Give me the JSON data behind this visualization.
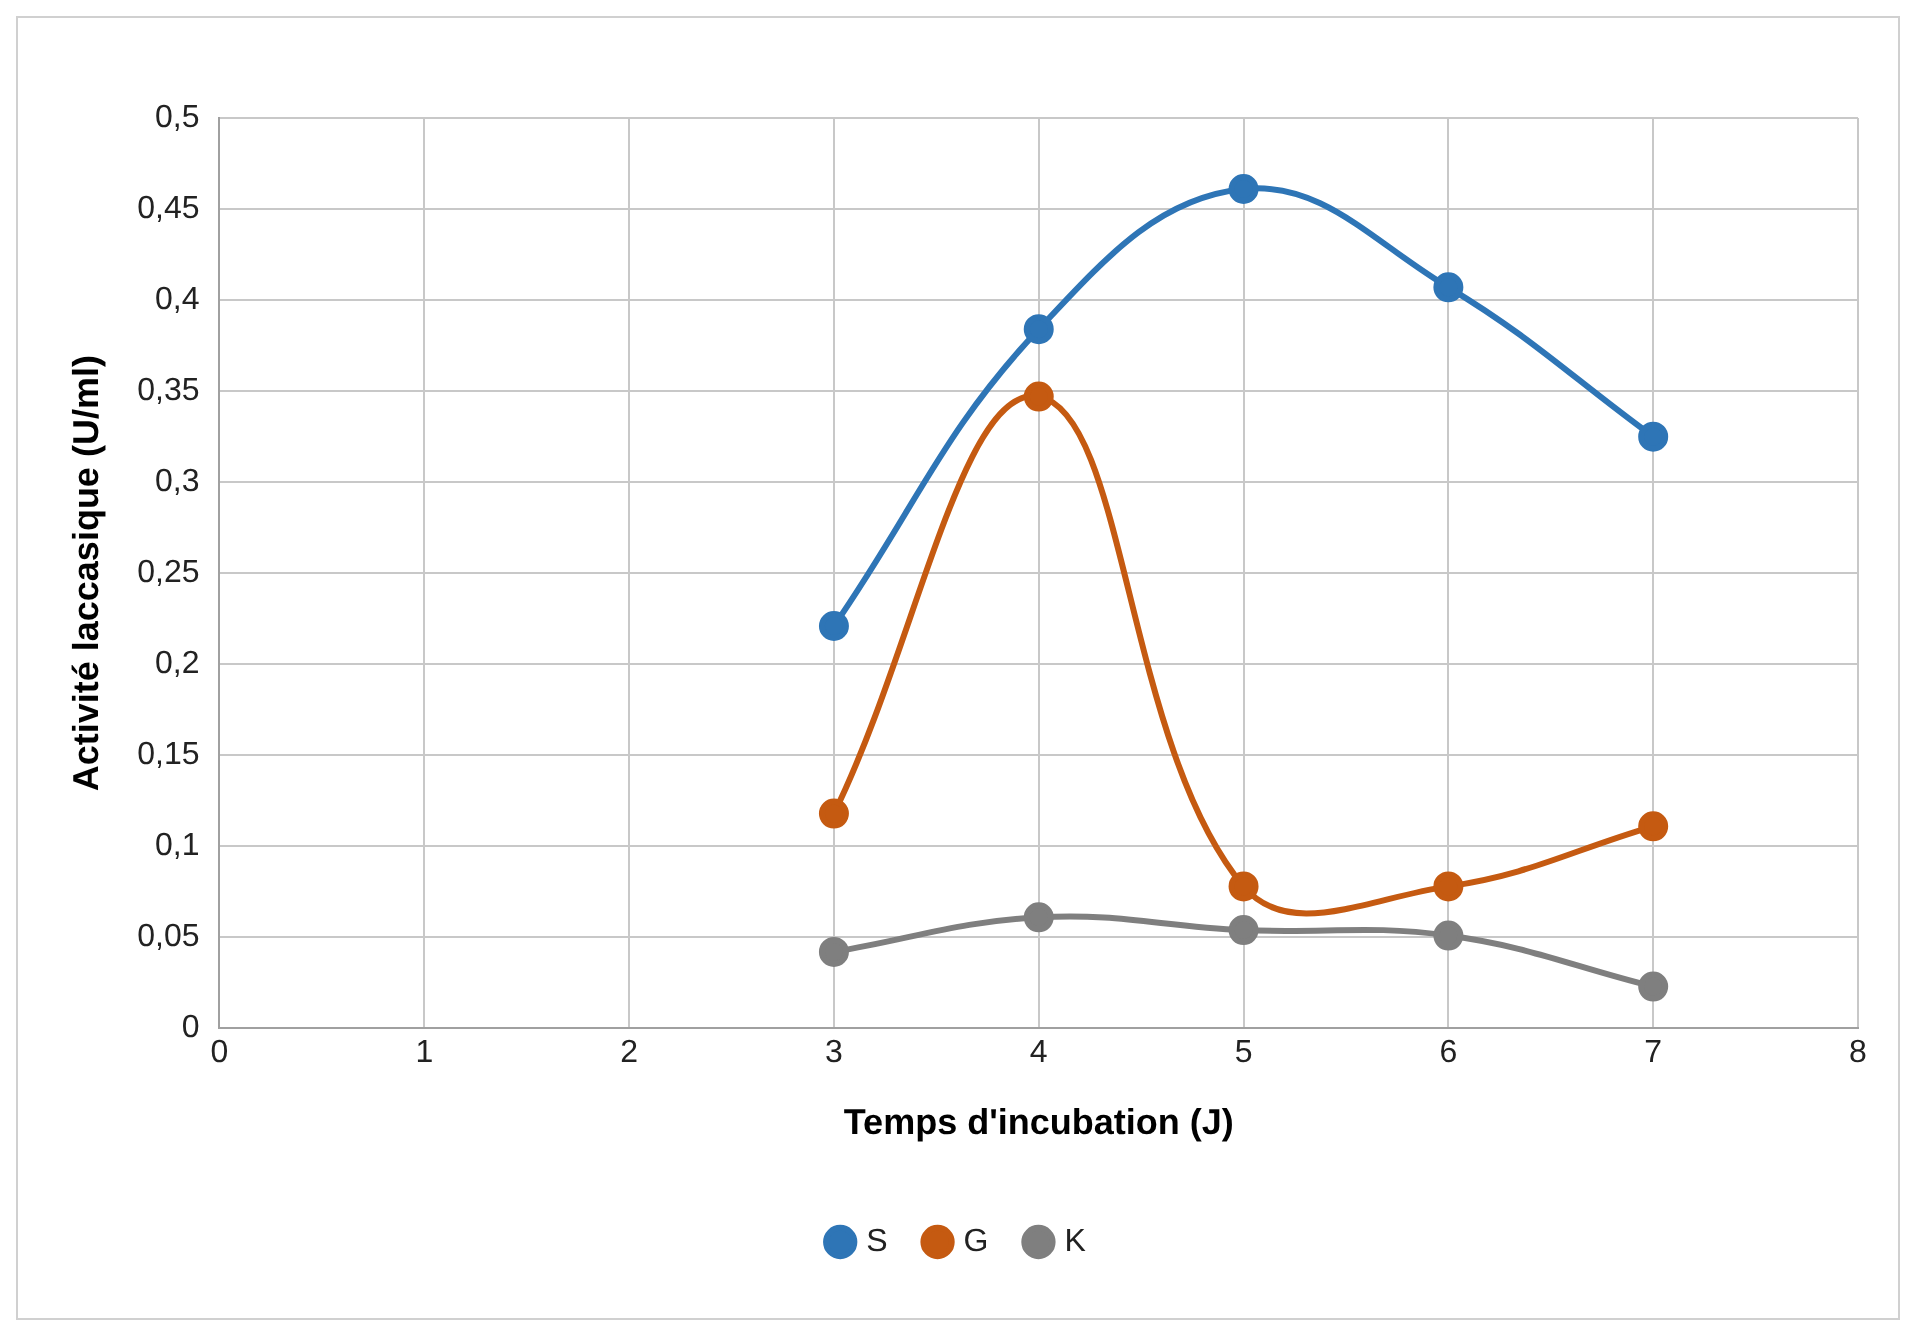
{
  "chart_data": {
    "type": "line",
    "xlabel": "Temps d'incubation (J)",
    "ylabel": "Activité laccasique (U/ml)",
    "x": [
      3,
      4,
      5,
      6,
      7
    ],
    "series": [
      {
        "name": "S",
        "color": "#2e75b6",
        "values": [
          0.221,
          0.384,
          0.461,
          0.407,
          0.325
        ]
      },
      {
        "name": "G",
        "color": "#c55a11",
        "values": [
          0.118,
          0.347,
          0.078,
          0.078,
          0.111
        ]
      },
      {
        "name": "K",
        "color": "#7f7f7f",
        "values": [
          0.042,
          0.061,
          0.054,
          0.051,
          0.023
        ]
      }
    ],
    "xlim": [
      0,
      8
    ],
    "xticks": [
      0,
      1,
      2,
      3,
      4,
      5,
      6,
      7,
      8
    ],
    "ylim": [
      0,
      0.5
    ],
    "yticks": [
      0,
      {
        "value": 0.05,
        "label": "0,05"
      },
      {
        "value": 0.1,
        "label": "0,1"
      },
      {
        "value": 0.15,
        "label": "0,15"
      },
      {
        "value": 0.2,
        "label": "0,2"
      },
      {
        "value": 0.25,
        "label": "0,25"
      },
      {
        "value": 0.3,
        "label": "0,3"
      },
      {
        "value": 0.35,
        "label": "0,35"
      },
      {
        "value": 0.4,
        "label": "0,4"
      },
      {
        "value": 0.45,
        "label": "0,45"
      },
      {
        "value": 0.5,
        "label": "0,5"
      }
    ],
    "grid": true,
    "legend": "bottom",
    "marker": "circle",
    "line_style": "solid"
  }
}
